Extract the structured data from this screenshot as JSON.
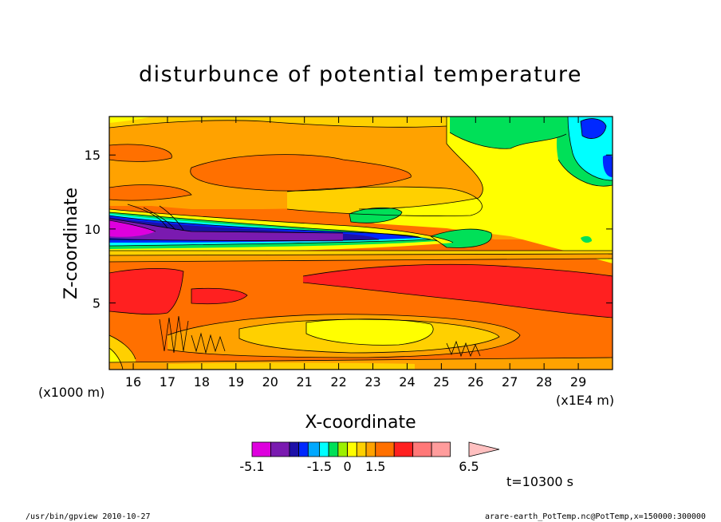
{
  "chart_data": {
    "type": "heatmap",
    "title": "disturbunce of potential temperature",
    "xlabel": "X-coordinate",
    "ylabel": "Z-coordinate",
    "x_unit": "(x1E4 m)",
    "y_unit": "(x1000 m)",
    "xlim": [
      15.3,
      30.0
    ],
    "ylim": [
      0.5,
      17.6
    ],
    "x_ticks": [
      16,
      17,
      18,
      19,
      20,
      21,
      22,
      23,
      24,
      25,
      26,
      27,
      28,
      29
    ],
    "y_ticks": [
      5,
      10,
      15
    ],
    "colorbar": {
      "levels": [
        -5.1,
        -4.1,
        -3.1,
        -2.6,
        -2.1,
        -1.5,
        -1.0,
        -0.5,
        0,
        0.5,
        1.0,
        1.5,
        2.5,
        3.5,
        4.5,
        5.5,
        6.5
      ],
      "colors": [
        "#de00de",
        "#7a1ab0",
        "#1e10a8",
        "#0028ff",
        "#00a8ff",
        "#00ffff",
        "#00e058",
        "#9cf000",
        "#ffff00",
        "#ffd000",
        "#ffa200",
        "#ff7000",
        "#ff2020",
        "#ff7878",
        "#ff9c9c",
        "#ffc0c0"
      ],
      "tick_labels": [
        "-5.1",
        "-1.5",
        "0",
        "1.5",
        "6.5"
      ],
      "extend": "max"
    }
  },
  "annotations": {
    "time": "t=10300 s",
    "footer_left": "/usr/bin/gpview  2010-10-27",
    "footer_right": "arare-earth_PotTemp.nc@PotTemp,x=150000:300000"
  }
}
